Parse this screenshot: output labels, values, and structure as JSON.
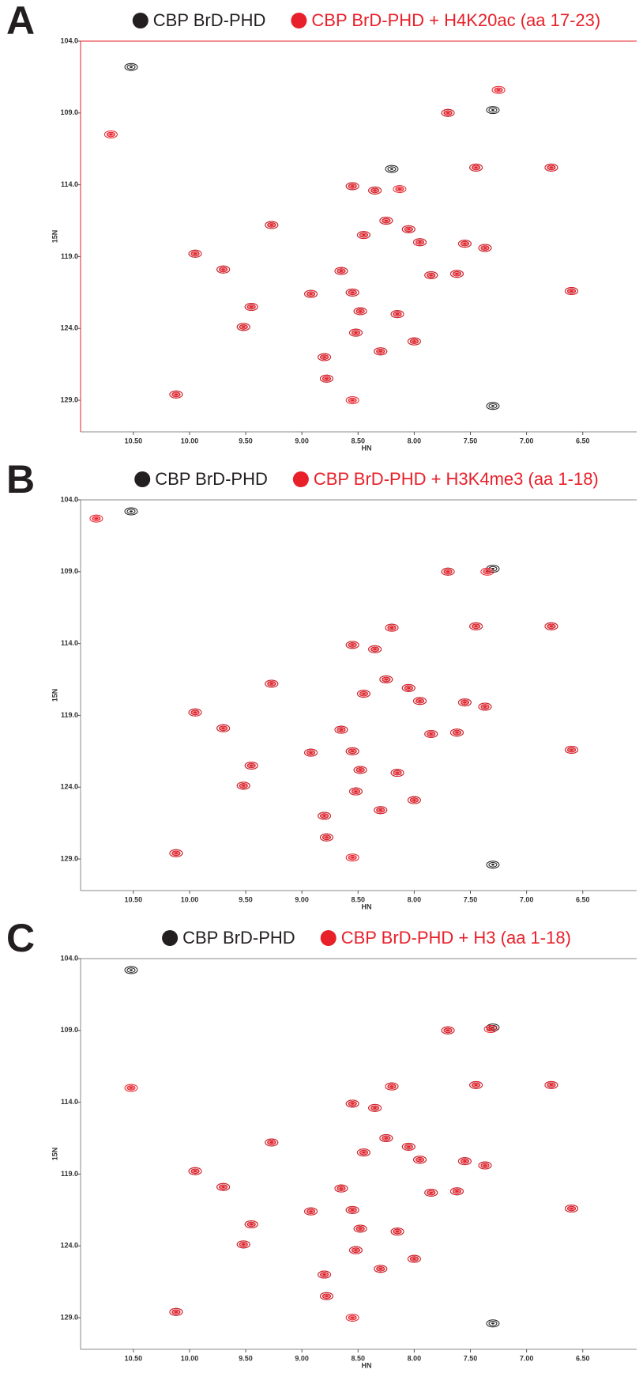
{
  "chart_data": [
    {
      "type": "scatter",
      "panel_label": "A",
      "xlabel": "HN",
      "ylabel": "15N",
      "xlim": [
        10.97,
        6.02
      ],
      "ylim": [
        131.2,
        104.0
      ],
      "xticks": [
        {
          "value": 10.5,
          "label": "10.50"
        },
        {
          "value": 10.0,
          "label": "10.00"
        },
        {
          "value": 9.5,
          "label": "9.50"
        },
        {
          "value": 9.0,
          "label": "9.00"
        },
        {
          "value": 8.5,
          "label": "8.50"
        },
        {
          "value": 8.0,
          "label": "8.00"
        },
        {
          "value": 7.5,
          "label": "7.50"
        },
        {
          "value": 7.0,
          "label": "7.00"
        },
        {
          "value": 6.5,
          "label": "6.50"
        }
      ],
      "yticks": [
        {
          "value": 104.0,
          "label": "104.0"
        },
        {
          "value": 109.0,
          "label": "109.0"
        },
        {
          "value": 114.0,
          "label": "114.0"
        },
        {
          "value": 119.0,
          "label": "119.0"
        },
        {
          "value": 124.0,
          "label": "124.0"
        },
        {
          "value": 129.0,
          "label": "129.0"
        }
      ],
      "series": [
        {
          "name": "CBP BrD-PHD",
          "color": "#231f20",
          "x": [
            10.12,
            9.95,
            9.7,
            9.27,
            9.45,
            9.52,
            8.92,
            8.65,
            8.55,
            8.48,
            8.52,
            8.8,
            8.78,
            8.3,
            8.15,
            8.0,
            7.85,
            7.62,
            7.37,
            7.55,
            7.95,
            8.05,
            8.25,
            8.45,
            8.55,
            8.35,
            8.2,
            7.7,
            7.45,
            7.3,
            6.78,
            6.6,
            10.52,
            7.3
          ],
          "values": [
            128.6,
            118.8,
            119.9,
            116.8,
            122.5,
            123.9,
            121.6,
            120.0,
            121.5,
            122.8,
            124.3,
            126.0,
            127.5,
            125.6,
            123.0,
            124.9,
            120.3,
            120.2,
            118.4,
            118.1,
            118.0,
            117.1,
            116.5,
            117.5,
            114.1,
            114.4,
            112.9,
            109.0,
            112.8,
            108.8,
            112.8,
            121.4,
            105.8,
            129.4
          ]
        },
        {
          "name": "CBP BrD-PHD + H4K20ac (aa 17-23)",
          "color": "#e8202a",
          "x": [
            10.12,
            9.95,
            9.7,
            9.27,
            9.45,
            9.52,
            8.92,
            8.65,
            8.55,
            8.48,
            8.52,
            8.8,
            8.78,
            8.3,
            8.15,
            8.0,
            7.85,
            7.62,
            7.37,
            7.55,
            7.95,
            8.05,
            8.25,
            8.45,
            8.55,
            8.35,
            8.13,
            7.7,
            7.45,
            7.25,
            6.78,
            6.6,
            10.7,
            8.55
          ],
          "values": [
            128.6,
            118.8,
            119.9,
            116.8,
            122.5,
            123.9,
            121.6,
            120.0,
            121.5,
            122.8,
            124.3,
            126.0,
            127.5,
            125.6,
            123.0,
            124.9,
            120.3,
            120.2,
            118.4,
            118.1,
            118.0,
            117.1,
            116.5,
            117.5,
            114.1,
            114.4,
            114.3,
            109.0,
            112.8,
            107.4,
            112.8,
            121.4,
            110.5,
            129.0
          ]
        }
      ]
    },
    {
      "type": "scatter",
      "panel_label": "B",
      "xlabel": "HN",
      "ylabel": "15N",
      "xlim": [
        10.97,
        6.02
      ],
      "ylim": [
        131.2,
        104.0
      ],
      "xticks": [
        {
          "value": 10.5,
          "label": "10.50"
        },
        {
          "value": 10.0,
          "label": "10.00"
        },
        {
          "value": 9.5,
          "label": "9.50"
        },
        {
          "value": 9.0,
          "label": "9.00"
        },
        {
          "value": 8.5,
          "label": "8.50"
        },
        {
          "value": 8.0,
          "label": "8.00"
        },
        {
          "value": 7.5,
          "label": "7.50"
        },
        {
          "value": 7.0,
          "label": "7.00"
        },
        {
          "value": 6.5,
          "label": "6.50"
        }
      ],
      "yticks": [
        {
          "value": 104.0,
          "label": "104.0"
        },
        {
          "value": 109.0,
          "label": "109.0"
        },
        {
          "value": 114.0,
          "label": "114.0"
        },
        {
          "value": 119.0,
          "label": "119.0"
        },
        {
          "value": 124.0,
          "label": "124.0"
        },
        {
          "value": 129.0,
          "label": "129.0"
        }
      ],
      "series": [
        {
          "name": "CBP BrD-PHD",
          "color": "#231f20",
          "x": [
            10.12,
            9.95,
            9.7,
            9.27,
            9.45,
            9.52,
            8.92,
            8.65,
            8.55,
            8.48,
            8.52,
            8.8,
            8.78,
            8.3,
            8.15,
            8.0,
            7.85,
            7.62,
            7.37,
            7.55,
            7.95,
            8.05,
            8.25,
            8.45,
            8.55,
            8.35,
            8.2,
            7.7,
            7.45,
            7.3,
            6.78,
            6.6,
            10.52,
            7.3
          ],
          "values": [
            128.6,
            118.8,
            119.9,
            116.8,
            122.5,
            123.9,
            121.6,
            120.0,
            121.5,
            122.8,
            124.3,
            126.0,
            127.5,
            125.6,
            123.0,
            124.9,
            120.3,
            120.2,
            118.4,
            118.1,
            118.0,
            117.1,
            116.5,
            117.5,
            114.1,
            114.4,
            112.9,
            109.0,
            112.8,
            108.8,
            112.8,
            121.4,
            104.8,
            129.4
          ]
        },
        {
          "name": "CBP BrD-PHD + H3K4me3 (aa 1-18)",
          "color": "#e8202a",
          "x": [
            10.12,
            9.95,
            9.7,
            9.27,
            9.45,
            9.52,
            8.92,
            8.65,
            8.55,
            8.48,
            8.52,
            8.8,
            8.78,
            8.3,
            8.15,
            8.0,
            7.85,
            7.62,
            7.37,
            7.55,
            7.95,
            8.05,
            8.25,
            8.45,
            8.55,
            8.35,
            8.2,
            7.7,
            7.45,
            7.35,
            6.78,
            6.6,
            10.83,
            8.55
          ],
          "values": [
            128.6,
            118.8,
            119.9,
            116.8,
            122.5,
            123.9,
            121.6,
            120.0,
            121.5,
            122.8,
            124.3,
            126.0,
            127.5,
            125.6,
            123.0,
            124.9,
            120.3,
            120.2,
            118.4,
            118.1,
            118.0,
            117.1,
            116.5,
            117.5,
            114.1,
            114.4,
            112.9,
            109.0,
            112.8,
            109.0,
            112.8,
            121.4,
            105.3,
            128.9
          ]
        }
      ]
    },
    {
      "type": "scatter",
      "panel_label": "C",
      "xlabel": "HN",
      "ylabel": "15N",
      "xlim": [
        10.97,
        6.02
      ],
      "ylim": [
        131.2,
        104.0
      ],
      "xticks": [
        {
          "value": 10.5,
          "label": "10.50"
        },
        {
          "value": 10.0,
          "label": "10.00"
        },
        {
          "value": 9.5,
          "label": "9.50"
        },
        {
          "value": 9.0,
          "label": "9.00"
        },
        {
          "value": 8.5,
          "label": "8.50"
        },
        {
          "value": 8.0,
          "label": "8.00"
        },
        {
          "value": 7.5,
          "label": "7.50"
        },
        {
          "value": 7.0,
          "label": "7.00"
        },
        {
          "value": 6.5,
          "label": "6.50"
        }
      ],
      "yticks": [
        {
          "value": 104.0,
          "label": "104.0"
        },
        {
          "value": 109.0,
          "label": "109.0"
        },
        {
          "value": 114.0,
          "label": "114.0"
        },
        {
          "value": 119.0,
          "label": "119.0"
        },
        {
          "value": 124.0,
          "label": "124.0"
        },
        {
          "value": 129.0,
          "label": "129.0"
        }
      ],
      "series": [
        {
          "name": "CBP BrD-PHD",
          "color": "#231f20",
          "x": [
            10.12,
            9.95,
            9.7,
            9.27,
            9.45,
            9.52,
            8.92,
            8.65,
            8.55,
            8.48,
            8.52,
            8.8,
            8.78,
            8.3,
            8.15,
            8.0,
            7.85,
            7.62,
            7.37,
            7.55,
            7.95,
            8.05,
            8.25,
            8.45,
            8.55,
            8.35,
            8.2,
            7.7,
            7.45,
            7.3,
            6.78,
            6.6,
            10.52,
            7.3
          ],
          "values": [
            128.6,
            118.8,
            119.9,
            116.8,
            122.5,
            123.9,
            121.6,
            120.0,
            121.5,
            122.8,
            124.3,
            126.0,
            127.5,
            125.6,
            123.0,
            124.9,
            120.3,
            120.2,
            118.4,
            118.1,
            118.0,
            117.1,
            116.5,
            117.5,
            114.1,
            114.4,
            112.9,
            109.0,
            112.8,
            108.8,
            112.8,
            121.4,
            104.8,
            129.4
          ]
        },
        {
          "name": "CBP BrD-PHD + H3 (aa 1-18)",
          "color": "#e8202a",
          "x": [
            10.12,
            9.95,
            9.7,
            9.27,
            9.45,
            9.52,
            8.92,
            8.65,
            8.55,
            8.48,
            8.52,
            8.8,
            8.78,
            8.3,
            8.15,
            8.0,
            7.85,
            7.62,
            7.37,
            7.55,
            7.95,
            8.05,
            8.25,
            8.45,
            8.55,
            8.35,
            8.2,
            7.7,
            7.45,
            7.32,
            6.78,
            6.6,
            10.52,
            8.55
          ],
          "values": [
            128.6,
            118.8,
            119.9,
            116.8,
            122.5,
            123.9,
            121.6,
            120.0,
            121.5,
            122.8,
            124.3,
            126.0,
            127.5,
            125.6,
            123.0,
            124.9,
            120.3,
            120.2,
            118.4,
            118.1,
            118.0,
            117.1,
            116.5,
            117.5,
            114.1,
            114.4,
            112.9,
            109.0,
            112.8,
            108.9,
            112.8,
            121.4,
            113.0,
            129.0
          ]
        }
      ]
    }
  ]
}
